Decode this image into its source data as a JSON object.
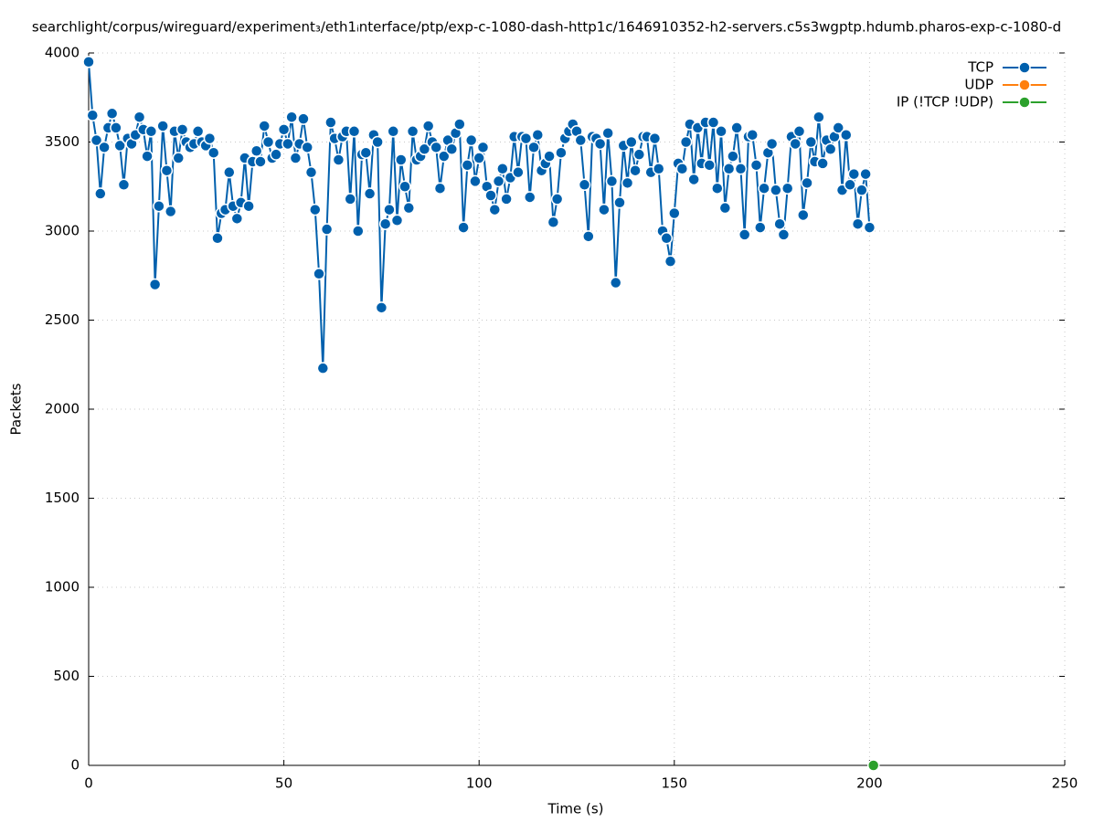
{
  "chart_data": {
    "type": "line",
    "title": "searchlight/corpus/wireguard/experiment₃/eth1ᵢnterface/ptp/exp-c-1080-dash-http1c/1646910352-h2-servers.c5s3wgptp.hdumb.pharos-exp-c-1080-d",
    "x_label": "Time (s)",
    "y_label": "Packets",
    "xlim": [
      0,
      250
    ],
    "xticks": [
      0,
      50,
      100,
      150,
      200,
      250
    ],
    "ylim": [
      0,
      4000
    ],
    "yticks": [
      0,
      500,
      1000,
      1500,
      2000,
      2500,
      3000,
      3500,
      4000
    ],
    "grid": true,
    "legend": "top-right",
    "series": [
      {
        "name": "TCP",
        "color": "#0060ad",
        "x": [
          0,
          1,
          2,
          3,
          4,
          5,
          6,
          7,
          8,
          9,
          10,
          11,
          12,
          13,
          14,
          15,
          16,
          17,
          18,
          19,
          20,
          21,
          22,
          23,
          24,
          25,
          26,
          27,
          28,
          29,
          30,
          31,
          32,
          33,
          34,
          35,
          36,
          37,
          38,
          39,
          40,
          41,
          42,
          43,
          44,
          45,
          46,
          47,
          48,
          49,
          50,
          51,
          52,
          53,
          54,
          55,
          56,
          57,
          58,
          59,
          60,
          61,
          62,
          63,
          64,
          65,
          66,
          67,
          68,
          69,
          70,
          71,
          72,
          73,
          74,
          75,
          76,
          77,
          78,
          79,
          80,
          81,
          82,
          83,
          84,
          85,
          86,
          87,
          88,
          89,
          90,
          91,
          92,
          93,
          94,
          95,
          96,
          97,
          98,
          99,
          100,
          101,
          102,
          103,
          104,
          105,
          106,
          107,
          108,
          109,
          110,
          111,
          112,
          113,
          114,
          115,
          116,
          117,
          118,
          119,
          120,
          121,
          122,
          123,
          124,
          125,
          126,
          127,
          128,
          129,
          130,
          131,
          132,
          133,
          134,
          135,
          136,
          137,
          138,
          139,
          140,
          141,
          142,
          143,
          144,
          145,
          146,
          147,
          148,
          149,
          150,
          151,
          152,
          153,
          154,
          155,
          156,
          157,
          158,
          159,
          160,
          161,
          162,
          163,
          164,
          165,
          166,
          167,
          168,
          169,
          170,
          171,
          172,
          173,
          174,
          175,
          176,
          177,
          178,
          179,
          180,
          181,
          182,
          183,
          184,
          185,
          186,
          187,
          188,
          189,
          190,
          191,
          192,
          193,
          194,
          195,
          196,
          197,
          198,
          199,
          200
        ],
        "values": [
          3950,
          3650,
          3510,
          3210,
          3470,
          3580,
          3660,
          3580,
          3480,
          3260,
          3520,
          3490,
          3540,
          3640,
          3570,
          3420,
          3560,
          2700,
          3140,
          3590,
          3340,
          3110,
          3560,
          3410,
          3570,
          3500,
          3470,
          3490,
          3560,
          3500,
          3480,
          3520,
          3440,
          2960,
          3100,
          3120,
          3330,
          3140,
          3070,
          3160,
          3410,
          3140,
          3390,
          3450,
          3390,
          3590,
          3500,
          3410,
          3430,
          3490,
          3570,
          3490,
          3640,
          3410,
          3490,
          3630,
          3470,
          3330,
          3120,
          2760,
          2230,
          3010,
          3610,
          3520,
          3400,
          3530,
          3560,
          3180,
          3560,
          3000,
          3430,
          3440,
          3210,
          3540,
          3500,
          2570,
          3040,
          3120,
          3560,
          3060,
          3400,
          3250,
          3130,
          3560,
          3400,
          3420,
          3460,
          3590,
          3500,
          3470,
          3240,
          3420,
          3510,
          3460,
          3550,
          3600,
          3020,
          3370,
          3510,
          3280,
          3410,
          3470,
          3250,
          3200,
          3120,
          3280,
          3350,
          3180,
          3300,
          3530,
          3330,
          3530,
          3520,
          3190,
          3470,
          3540,
          3340,
          3380,
          3420,
          3050,
          3180,
          3440,
          3520,
          3560,
          3600,
          3560,
          3510,
          3260,
          2970,
          3530,
          3520,
          3490,
          3120,
          3550,
          3280,
          2710,
          3160,
          3480,
          3270,
          3500,
          3340,
          3430,
          3530,
          3530,
          3330,
          3520,
          3350,
          3000,
          2960,
          2830,
          3100,
          3380,
          3350,
          3500,
          3600,
          3290,
          3580,
          3380,
          3610,
          3370,
          3610,
          3240,
          3560,
          3130,
          3350,
          3420,
          3580,
          3350,
          2980,
          3530,
          3540,
          3370,
          3020,
          3240,
          3440,
          3490,
          3230,
          3040,
          2980,
          3240,
          3530,
          3490,
          3560,
          3090,
          3270,
          3500,
          3390,
          3640,
          3380,
          3510,
          3460,
          3530,
          3580,
          3230,
          3540,
          3260,
          3320,
          3040,
          3230,
          3320,
          3020
        ]
      },
      {
        "name": "UDP",
        "color": "#ff7f0e",
        "x": [],
        "values": []
      },
      {
        "name": "IP (!TCP  !UDP)",
        "color": "#2ca02c",
        "x": [
          201
        ],
        "values": [
          0
        ]
      }
    ]
  }
}
